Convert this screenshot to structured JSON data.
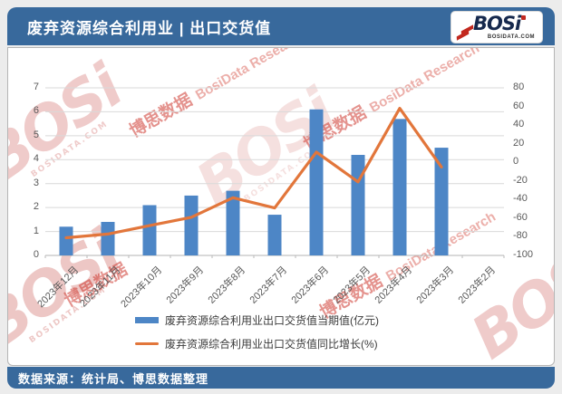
{
  "header": {
    "title": "废弃资源综合利用业 | 出口交货值",
    "logo": {
      "brand": "BOSi",
      "site": "BOSIDATA.COM"
    }
  },
  "watermark": {
    "brand": "BOSi",
    "cn": "博思数据",
    "en": "BosiData Research",
    "site": "BOSIDATA.COM"
  },
  "footer": {
    "source": "数据来源：统计局、博思数据整理"
  },
  "colors": {
    "header_bg": "#38699C",
    "footer_bg": "#38699C",
    "bar": "#4D86C6",
    "line": "#E2763B",
    "gridline": "#D9D9D9",
    "axis_text": "#595959",
    "watermark_red": "#C8473F"
  },
  "chart_data": {
    "type": "bar+line",
    "title": "废弃资源综合利用业 | 出口交货值",
    "categories": [
      "2023年12月",
      "2023年11月",
      "2023年10月",
      "2023年9月",
      "2023年8月",
      "2023年7月",
      "2023年6月",
      "2023年5月",
      "2023年4月",
      "2023年3月",
      "2023年2月"
    ],
    "series": [
      {
        "name": "废弃资源综合利用业出口交货值当期值(亿元)",
        "type": "bar",
        "axis": "left",
        "color": "#4D86C6",
        "values": [
          1.2,
          1.4,
          2.1,
          2.5,
          2.7,
          1.7,
          6.1,
          4.2,
          5.7,
          4.5,
          null
        ]
      },
      {
        "name": "废弃资源综合利用业出口交货值同比增长(%)",
        "type": "line",
        "axis": "right",
        "color": "#E2763B",
        "values": [
          -81,
          -77,
          -68,
          -59,
          -38,
          -49,
          11,
          -21,
          58,
          -5,
          null
        ]
      }
    ],
    "left_axis": {
      "min": 0,
      "max": 7,
      "ticks": [
        0,
        1,
        2,
        3,
        4,
        5,
        6,
        7
      ]
    },
    "right_axis": {
      "min": -100,
      "max": 80,
      "ticks": [
        80,
        60,
        40,
        20,
        0,
        -20,
        -40,
        -60,
        -80,
        -100
      ]
    },
    "grid": true,
    "legend_position": "bottom"
  }
}
